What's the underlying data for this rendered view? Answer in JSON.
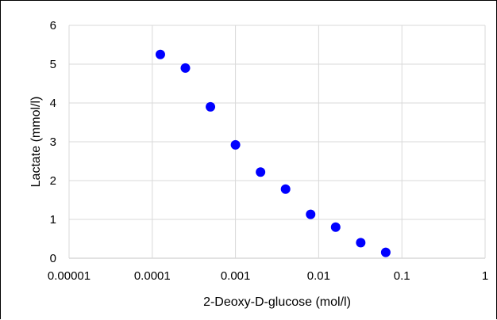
{
  "chart_data": {
    "type": "scatter",
    "xscale": "log",
    "xlabel": "2-Deoxy-D-glucose (mol/l)",
    "ylabel": "Lactate (mmol/l)",
    "xlim": [
      1e-05,
      1
    ],
    "ylim": [
      0,
      6
    ],
    "x_ticks": [
      1e-05,
      0.0001,
      0.001,
      0.01,
      0.1,
      1
    ],
    "x_tick_labels": [
      "0.00001",
      "0.0001",
      "0.001",
      "0.01",
      "0.1",
      "1"
    ],
    "y_ticks": [
      0,
      1,
      2,
      3,
      4,
      5,
      6
    ],
    "y_tick_labels": [
      "0",
      "1",
      "2",
      "3",
      "4",
      "5",
      "6"
    ],
    "grid": true,
    "legend": "none",
    "marker_color": "#0000ff",
    "grid_color": "#d9d9d9",
    "series": [
      {
        "x": [
          0.000125,
          0.00025,
          0.0005,
          0.001,
          0.002,
          0.004,
          0.008,
          0.016,
          0.032,
          0.064
        ],
        "y": [
          5.25,
          4.9,
          3.9,
          2.92,
          2.22,
          1.78,
          1.13,
          0.8,
          0.4,
          0.15
        ]
      }
    ]
  }
}
